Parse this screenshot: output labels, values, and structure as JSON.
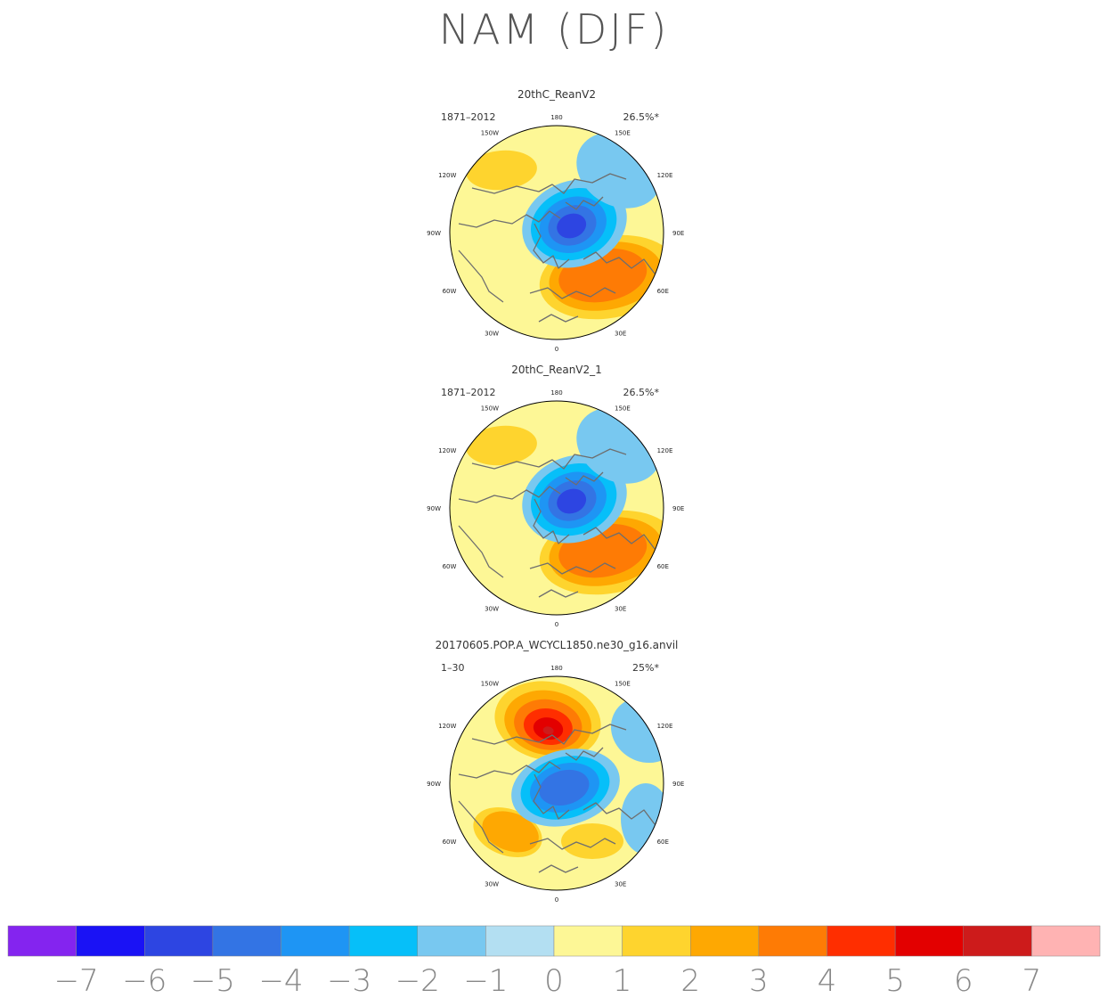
{
  "title": "NAM (DJF)",
  "chart_data": [
    {
      "type": "heatmap",
      "projection": "polar-stereographic (north)",
      "title": "20thC_ReanV2",
      "period": "1871–2012",
      "variance": "26.5%*",
      "longitude_labels": [
        "180",
        "150E",
        "120E",
        "90E",
        "60E",
        "30E",
        "0",
        "30W",
        "60W",
        "90W",
        "120W",
        "150W"
      ],
      "features": [
        {
          "name": "Arctic low",
          "sign": "negative",
          "peak": -5
        },
        {
          "name": "Atlantic high",
          "sign": "positive",
          "peak": 3
        },
        {
          "name": "Pacific high",
          "sign": "positive",
          "peak": 2
        }
      ]
    },
    {
      "type": "heatmap",
      "projection": "polar-stereographic (north)",
      "title": "20thC_ReanV2_1",
      "period": "1871–2012",
      "variance": "26.5%*",
      "longitude_labels": [
        "180",
        "150E",
        "120E",
        "90E",
        "60E",
        "30E",
        "0",
        "30W",
        "60W",
        "90W",
        "120W",
        "150W"
      ],
      "features": [
        {
          "name": "Arctic low",
          "sign": "negative",
          "peak": -5
        },
        {
          "name": "Atlantic high",
          "sign": "positive",
          "peak": 3
        },
        {
          "name": "Pacific high",
          "sign": "positive",
          "peak": 2
        }
      ]
    },
    {
      "type": "heatmap",
      "projection": "polar-stereographic (north)",
      "title": "20170605.POP.A_WCYCL1850.ne30_g16.anvil",
      "period": "1–30",
      "variance": "25%*",
      "longitude_labels": [
        "180",
        "150E",
        "120E",
        "90E",
        "60E",
        "30E",
        "0",
        "30W",
        "60W",
        "90W",
        "120W",
        "150W"
      ],
      "features": [
        {
          "name": "Arctic low",
          "sign": "negative",
          "peak": -4
        },
        {
          "name": "Atlantic high",
          "sign": "positive",
          "peak": 2
        },
        {
          "name": "Pacific high",
          "sign": "positive",
          "peak": 6
        }
      ]
    }
  ],
  "colorbar": {
    "labels": [
      "−7",
      "−6",
      "−5",
      "−4",
      "−3",
      "−2",
      "−1",
      "0",
      "1",
      "2",
      "3",
      "4",
      "5",
      "6",
      "7"
    ],
    "colors": [
      "#8424ef",
      "#1a12f5",
      "#2d45e2",
      "#3374e4",
      "#1e95f4",
      "#06bff9",
      "#78c8f0",
      "#b3dff2",
      "#fdf796",
      "#fed42e",
      "#fea802",
      "#fe7b05",
      "#ff2e00",
      "#e30000",
      "#cd1b1b",
      "#ffb3b3"
    ]
  },
  "palette": {
    "base_positive": "#fdf796",
    "base_negative": "#b3dff2",
    "coastline": "#6e6e6e"
  }
}
